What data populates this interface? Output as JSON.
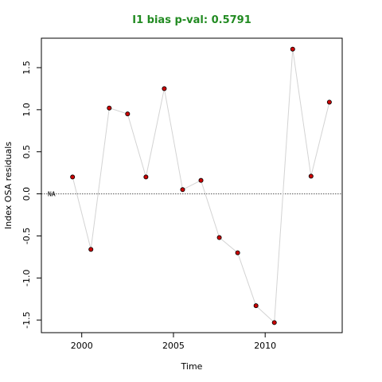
{
  "chart_data": {
    "type": "scatter",
    "title": "I1 bias p-val: 0.5791",
    "xlabel": "Time",
    "ylabel": "Index OSA residuals",
    "xlim": [
      1997.8,
      2014.2
    ],
    "ylim": [
      -1.65,
      1.85
    ],
    "xticks": [
      2000,
      2005,
      2010
    ],
    "yticks": [
      -1.5,
      -1.0,
      -0.5,
      0.0,
      0.5,
      1.0,
      1.5
    ],
    "grid": false,
    "reference_line": 0.0,
    "annotation": "NA",
    "series": [
      {
        "x": [
          1999.5,
          2000.5,
          2001.5,
          2002.5,
          2003.5,
          2004.5,
          2005.5,
          2006.5,
          2007.5,
          2008.5,
          2009.5,
          2010.5,
          2011.5,
          2012.5,
          2013.5
        ],
        "values": [
          0.2,
          -0.66,
          1.02,
          0.95,
          0.2,
          1.25,
          0.05,
          0.16,
          -0.52,
          -0.7,
          -1.33,
          -1.53,
          1.72,
          0.21,
          1.09
        ]
      }
    ],
    "colors": {
      "title": "#228B22",
      "point_fill": "#CC0000",
      "point_stroke": "#000000",
      "line": "#D3D3D3",
      "reference": "#555555"
    }
  }
}
